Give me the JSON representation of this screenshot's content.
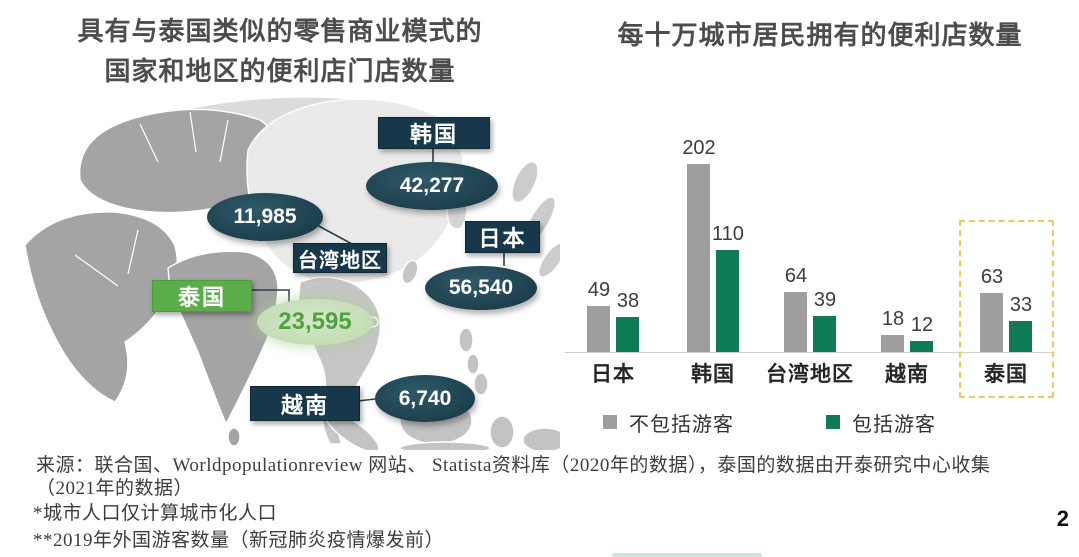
{
  "slide": {
    "page_number": "2"
  },
  "left_panel": {
    "title": [
      "具有与泰国类似的零售商业模式的",
      "国家和地区的便利店门店数量"
    ]
  },
  "map": {
    "labels": {
      "korea": {
        "name": "韩国",
        "value": "42,277"
      },
      "taiwan": {
        "name": "台湾地区",
        "value": "11,985"
      },
      "japan": {
        "name": "日本",
        "value": "56,540"
      },
      "thailand": {
        "name": "泰国",
        "value": "23,595"
      },
      "vietnam": {
        "name": "越南",
        "value": "6,740"
      }
    }
  },
  "chart_data": {
    "type": "bar",
    "title": "每十万城市居民拥有的便利店数量",
    "categories": [
      "日本",
      "韩国",
      "台湾地区",
      "越南",
      "泰国"
    ],
    "series": [
      {
        "name": "不包括游客",
        "color": "#9e9e9e",
        "values": [
          49,
          202,
          64,
          18,
          63
        ]
      },
      {
        "name": "包括游客",
        "color": "#0f7a57",
        "values": [
          38,
          110,
          39,
          12,
          33
        ]
      }
    ],
    "ylim": [
      0,
      210
    ],
    "grid": false,
    "legend_position": "bottom",
    "highlight": {
      "category": "泰国",
      "style": "dashed-yellow-box",
      "color": "#e2cf55"
    }
  },
  "footer": {
    "source_line1": "来源：联合国、Worldpopulationreview 网站、 Statista资料库（2020年的数据），泰国的数据由开泰研究中心收集",
    "source_line2": "（2021年的数据）",
    "note1": "*城市人口仅计算城市化人口",
    "note2": "**2019年外国游客数量（新冠肺炎疫情爆发前）"
  },
  "colors": {
    "dark_teal": "#17384a",
    "green_box": "#5bad4a",
    "light_green_ellipse": "#c9e0bc",
    "green_text": "#4ea33f",
    "bar_gray": "#9e9e9e",
    "bar_green": "#0f7a57",
    "highlight_yellow": "#e2cf55",
    "title_gray": "#4d4d4d"
  }
}
